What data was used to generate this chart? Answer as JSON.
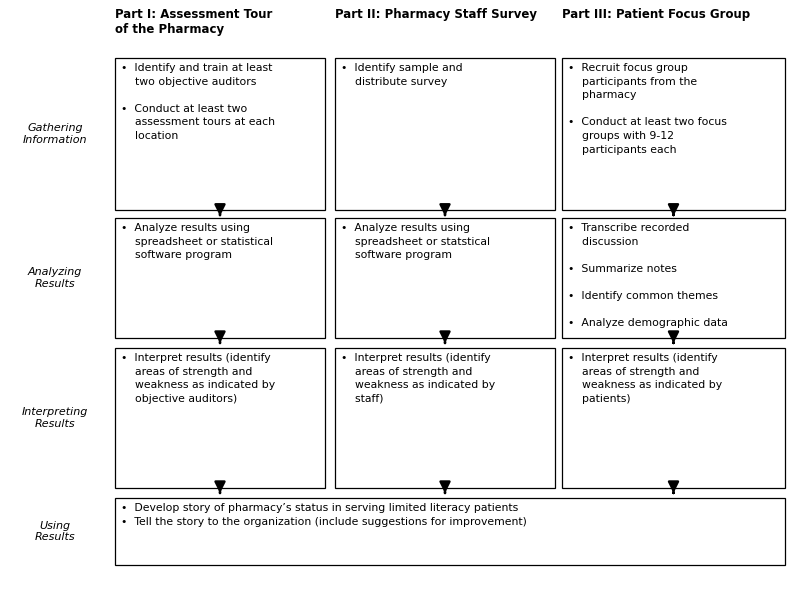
{
  "background_color": "#ffffff",
  "fig_width": 7.98,
  "fig_height": 5.92,
  "row_labels": [
    "Gathering\nInformation",
    "Analyzing\nResults",
    "Interpreting\nResults",
    "Using\nResults"
  ],
  "col_headers": [
    "Part I: Assessment Tour\nof the Pharmacy",
    "Part II: Pharmacy Staff Survey",
    "Part III: Patient Focus Group"
  ],
  "cells": [
    [
      "•  Identify and train at least\n    two objective auditors\n\n•  Conduct at least two\n    assessment tours at each\n    location",
      "•  Identify sample and\n    distribute survey",
      "•  Recruit focus group\n    participants from the\n    pharmacy\n\n•  Conduct at least two focus\n    groups with 9-12\n    participants each"
    ],
    [
      "•  Analyze results using\n    spreadsheet or statistical\n    software program",
      "•  Analyze results using\n    spreadsheet or statstical\n    software program",
      "•  Transcribe recorded\n    discussion\n\n•  Summarize notes\n\n•  Identify common themes\n\n•  Analyze demographic data"
    ],
    [
      "•  Interpret results (identify\n    areas of strength and\n    weakness as indicated by\n    objective auditors)",
      "•  Interpret results (identify\n    areas of strength and\n    weakness as indicated by\n    staff)",
      "•  Interpret results (identify\n    areas of strength and\n    weakness as indicated by\n    patients)"
    ],
    [
      "•  Develop story of pharmacy’s status in serving limited literacy patients\n•  Tell the story to the organization (include suggestions for improvement)"
    ]
  ],
  "arrow_color": "#000000",
  "box_edge_color": "#000000",
  "box_face_color": "#ffffff",
  "text_color": "#000000",
  "font_size_label": 8.0,
  "font_size_cell": 7.8,
  "font_size_header": 8.5
}
